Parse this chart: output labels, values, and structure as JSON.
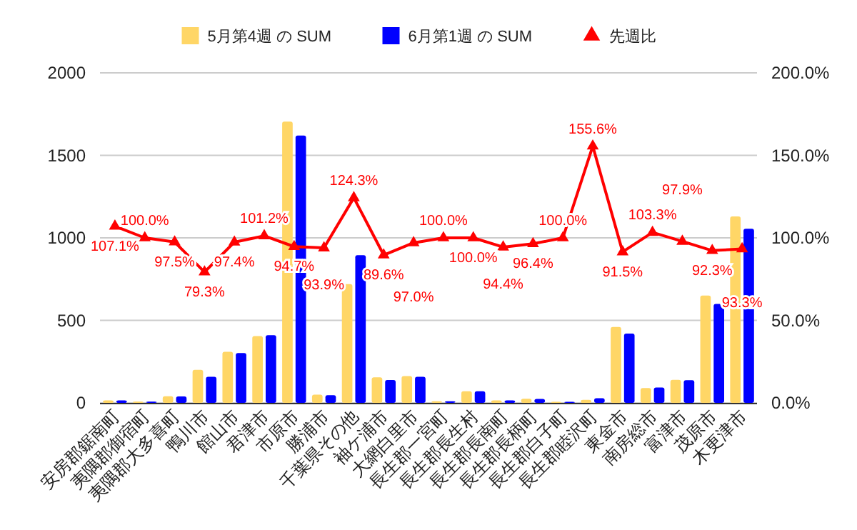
{
  "chart_data": {
    "type": "bar",
    "categories": [
      "安房郡鋸南町",
      "夷隅郡御宿町",
      "夷隅郡大多喜町",
      "鴨川市",
      "館山市",
      "君津市",
      "市原市",
      "勝浦市",
      "千葉県その他",
      "袖ケ浦市",
      "大網白里市",
      "長生郡一宮町",
      "長生郡長生村",
      "長生郡長南町",
      "長生郡長柄町",
      "長生郡白子町",
      "長生郡睦沢町",
      "東金市",
      "南房総市",
      "富津市",
      "茂原市",
      "木更津市"
    ],
    "series": [
      {
        "name": "5月第4週 の SUM",
        "color": "#ffd666",
        "values": [
          15,
          8,
          40,
          200,
          310,
          405,
          1705,
          50,
          720,
          155,
          162,
          10,
          70,
          15,
          25,
          7,
          18,
          460,
          90,
          140,
          650,
          1130
        ]
      },
      {
        "name": "6月第1週 の SUM",
        "color": "#0000ff",
        "values": [
          15,
          8,
          39,
          158,
          302,
          410,
          1620,
          47,
          895,
          139,
          158,
          10,
          70,
          15,
          24,
          7,
          28,
          420,
          93,
          137,
          600,
          1055
        ]
      },
      {
        "name": "先週比",
        "color": "#ff0000",
        "type": "line",
        "axis": "y2",
        "marker": "triangle",
        "values": [
          107.1,
          100.0,
          97.5,
          79.3,
          97.4,
          101.2,
          94.7,
          93.9,
          124.3,
          89.6,
          97.0,
          100.0,
          100.0,
          94.4,
          96.4,
          100.0,
          155.6,
          91.5,
          103.3,
          97.9,
          92.3,
          93.3
        ],
        "value_labels": [
          "107.1%",
          "100.0%",
          "97.5%",
          "79.3%",
          "97.4%",
          "101.2%",
          "94.7%",
          "93.9%",
          "124.3%",
          "89.6%",
          "97.0%",
          "100.0%",
          "100.0%",
          "94.4%",
          "96.4%",
          "100.0%",
          "155.6%",
          "91.5%",
          "103.3%",
          "97.9%",
          "92.3%",
          "93.3%"
        ]
      }
    ],
    "ylim": [
      0,
      2000
    ],
    "yticks": [
      0,
      500,
      1000,
      1500,
      2000
    ],
    "y2lim": [
      0,
      200
    ],
    "y2ticks": [
      {
        "value": 0,
        "label": "0.0%"
      },
      {
        "value": 50,
        "label": "50.0%"
      },
      {
        "value": 100,
        "label": "100.0%"
      },
      {
        "value": 150,
        "label": "150.0%"
      },
      {
        "value": 200,
        "label": "200.0%"
      }
    ],
    "grid": "y",
    "legend": "top"
  }
}
